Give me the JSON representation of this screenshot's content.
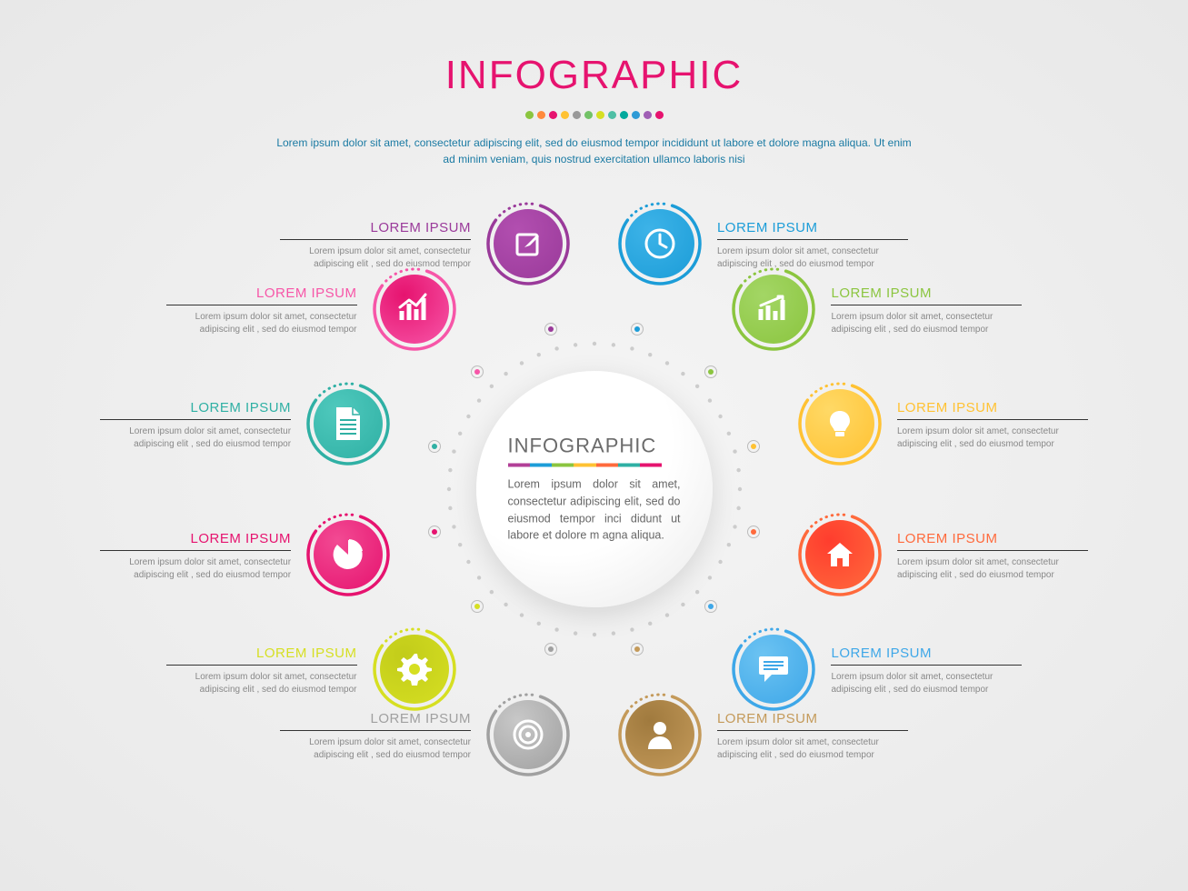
{
  "title": {
    "text": "INFOGRAPHIC",
    "color": "#e6136f"
  },
  "title_dots": [
    "#8bc53f",
    "#ff8a3c",
    "#e6136f",
    "#ffc233",
    "#999999",
    "#72c267",
    "#d6df22",
    "#4fbfa5",
    "#00a99d",
    "#2e9bd6",
    "#a05eb5",
    "#e6136f"
  ],
  "subtitle": {
    "text": "Lorem ipsum dolor sit amet, consectetur adipiscing elit, sed do eiusmod tempor incididunt ut labore et dolore magna aliqua. Ut enim ad minim veniam, quis nostrud exercitation ullamco laboris nisi",
    "color": "#1a7aa3"
  },
  "center": {
    "title": "INFOGRAPHIC",
    "bar_colors": [
      "#b23f97",
      "#1c9dd8",
      "#8bc53f",
      "#ffc233",
      "#ff6a3c",
      "#2fb0a4",
      "#e6136f"
    ],
    "body": "Lorem ipsum dolor sit amet, consectetur adipiscing elit, sed do eiusmod tempor inci didunt ut labore et dolore m agna aliqua."
  },
  "dotted_ring": {
    "radius": 160,
    "dot_count": 48,
    "dot_color": "#cccccc"
  },
  "layout": {
    "node_radius": 280
  },
  "node_label": "LOREM IPSUM",
  "node_desc": "Lorem ipsum dolor sit amet, consectetur adipiscing elit , sed do eiusmod tempor",
  "nodes": [
    {
      "angle": -105,
      "side": "left",
      "color": "#9a3a9a",
      "color2": "#b24fb0",
      "icon": "edit"
    },
    {
      "angle": -75,
      "side": "right",
      "color": "#1c9dd8",
      "color2": "#3db3e8",
      "icon": "clock"
    },
    {
      "angle": -45,
      "side": "right",
      "color": "#8bc53f",
      "color2": "#a3d665",
      "icon": "bars-up"
    },
    {
      "angle": -15,
      "side": "right",
      "color": "#ffc233",
      "color2": "#ffd966",
      "icon": "bulb"
    },
    {
      "angle": 15,
      "side": "right",
      "color": "#ff6a3c",
      "color2": "#ff3d2e",
      "icon": "home"
    },
    {
      "angle": 45,
      "side": "right",
      "color": "#3ea7e8",
      "color2": "#6cc3f2",
      "icon": "chat"
    },
    {
      "angle": 75,
      "side": "right",
      "color": "#c49a5a",
      "color2": "#a07a3e",
      "icon": "user"
    },
    {
      "angle": 105,
      "side": "left",
      "color": "#a0a0a0",
      "color2": "#c8c8c8",
      "icon": "target"
    },
    {
      "angle": 135,
      "side": "left",
      "color": "#d6df22",
      "color2": "#c2cc1a",
      "icon": "gear"
    },
    {
      "angle": 165,
      "side": "left",
      "color": "#e6136f",
      "color2": "#f24a93",
      "icon": "pie"
    },
    {
      "angle": 195,
      "side": "left",
      "color": "#2fb0a4",
      "color2": "#4fc9bd",
      "icon": "doc"
    },
    {
      "angle": 225,
      "side": "left",
      "color": "#f756a8",
      "color2": "#e6136f",
      "icon": "bars"
    }
  ]
}
